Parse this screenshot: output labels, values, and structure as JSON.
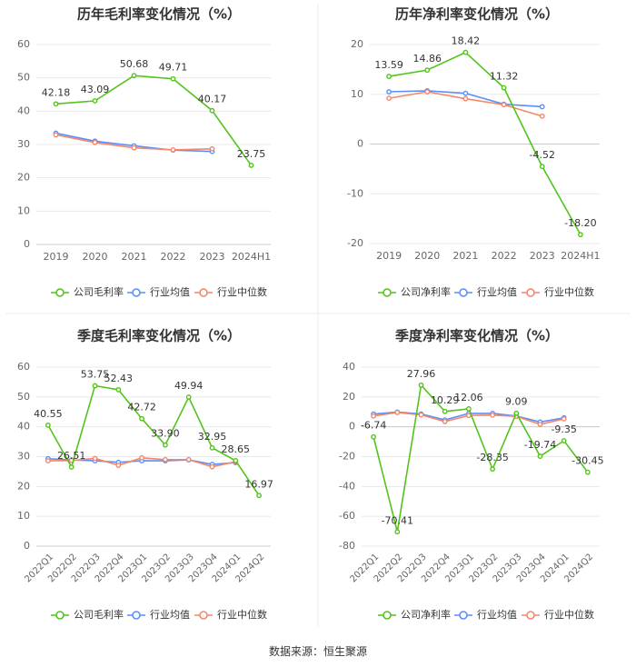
{
  "colors": {
    "company": "#52c41a",
    "industry_avg": "#5b8ff9",
    "industry_median": "#f4866a",
    "grid": "#e8e8e8",
    "axis_text": "#666666",
    "title": "#333333",
    "divider": "#eeeeee"
  },
  "legend_icon": "line-with-hollow-circle-icon",
  "source": "数据来源：恒生聚源",
  "chart_data": [
    {
      "type": "line",
      "title": "历年毛利率变化情况（%）",
      "categories": [
        "2019",
        "2020",
        "2021",
        "2022",
        "2023",
        "2024H1"
      ],
      "ylim": [
        0,
        60
      ],
      "yticks": [
        0,
        10,
        20,
        30,
        40,
        50,
        60
      ],
      "grid": true,
      "legend_position": "bottom",
      "series": [
        {
          "name": "公司毛利率",
          "values": [
            42.18,
            43.09,
            50.68,
            49.71,
            40.17,
            23.75
          ],
          "labels": [
            "42.18",
            "43.09",
            "50.68",
            "49.71",
            "40.17",
            "23.75"
          ]
        },
        {
          "name": "行业均值",
          "values": [
            33.4,
            31.0,
            29.6,
            28.3,
            27.9,
            null
          ]
        },
        {
          "name": "行业中位数",
          "values": [
            32.9,
            30.6,
            29.0,
            28.4,
            28.7,
            null
          ]
        }
      ]
    },
    {
      "type": "line",
      "title": "历年净利率变化情况（%）",
      "categories": [
        "2019",
        "2020",
        "2021",
        "2022",
        "2023",
        "2024H1"
      ],
      "ylim": [
        -20,
        20
      ],
      "yticks": [
        -20,
        -10,
        0,
        10,
        20
      ],
      "grid": true,
      "legend_position": "bottom",
      "series": [
        {
          "name": "公司净利率",
          "values": [
            13.59,
            14.86,
            18.42,
            11.32,
            -4.52,
            -18.2
          ],
          "labels": [
            "13.59",
            "14.86",
            "18.42",
            "11.32",
            "-4.52",
            "-18.20"
          ]
        },
        {
          "name": "行业均值",
          "values": [
            10.5,
            10.7,
            10.2,
            8.0,
            7.5,
            null
          ]
        },
        {
          "name": "行业中位数",
          "values": [
            9.2,
            10.5,
            9.1,
            7.9,
            5.6,
            null
          ]
        }
      ]
    },
    {
      "type": "line",
      "title": "季度毛利率变化情况（%）",
      "categories": [
        "2022Q1",
        "2022Q2",
        "2022Q3",
        "2022Q4",
        "2023Q1",
        "2023Q2",
        "2023Q3",
        "2023Q4",
        "2024Q1",
        "2024Q2"
      ],
      "ylim": [
        0,
        60
      ],
      "yticks": [
        0,
        10,
        20,
        30,
        40,
        50,
        60
      ],
      "grid": true,
      "legend_position": "bottom",
      "series": [
        {
          "name": "公司毛利率",
          "values": [
            40.55,
            26.51,
            53.75,
            52.43,
            42.72,
            33.9,
            49.94,
            32.95,
            28.65,
            16.97
          ],
          "labels": [
            "40.55",
            "26.51",
            "53.75",
            "52.43",
            "42.72",
            "33.90",
            "49.94",
            "32.95",
            "28.65",
            "16.97"
          ]
        },
        {
          "name": "行业均值",
          "values": [
            29.3,
            28.9,
            28.6,
            28.1,
            28.6,
            28.6,
            28.9,
            27.4,
            28.0,
            null
          ]
        },
        {
          "name": "行业中位数",
          "values": [
            28.6,
            28.7,
            29.4,
            27.1,
            29.6,
            29.0,
            29.0,
            26.6,
            28.3,
            null
          ]
        }
      ]
    },
    {
      "type": "line",
      "title": "季度净利率变化情况（%）",
      "categories": [
        "2022Q1",
        "2022Q2",
        "2022Q3",
        "2022Q4",
        "2023Q1",
        "2023Q2",
        "2023Q3",
        "2023Q4",
        "2024Q1",
        "2024Q2"
      ],
      "ylim": [
        -80,
        40
      ],
      "yticks": [
        -80,
        -60,
        -40,
        -20,
        0,
        20,
        40
      ],
      "grid": true,
      "legend_position": "bottom",
      "series": [
        {
          "name": "公司净利率",
          "values": [
            -6.74,
            -70.41,
            27.96,
            10.29,
            12.06,
            -28.35,
            9.09,
            -19.74,
            -9.35,
            -30.45
          ],
          "labels": [
            "-6.74",
            "-70.41",
            "27.96",
            "10.29",
            "12.06",
            "-28.35",
            "9.09",
            "-19.74",
            "-9.35",
            "-30.45"
          ]
        },
        {
          "name": "行业均值",
          "values": [
            8.5,
            9.9,
            8.6,
            4.6,
            9.0,
            9.0,
            7.2,
            3.2,
            6.0,
            null
          ]
        },
        {
          "name": "行业中位数",
          "values": [
            7.2,
            9.6,
            8.0,
            3.5,
            7.6,
            7.8,
            7.0,
            1.6,
            5.3,
            null
          ]
        }
      ]
    }
  ]
}
